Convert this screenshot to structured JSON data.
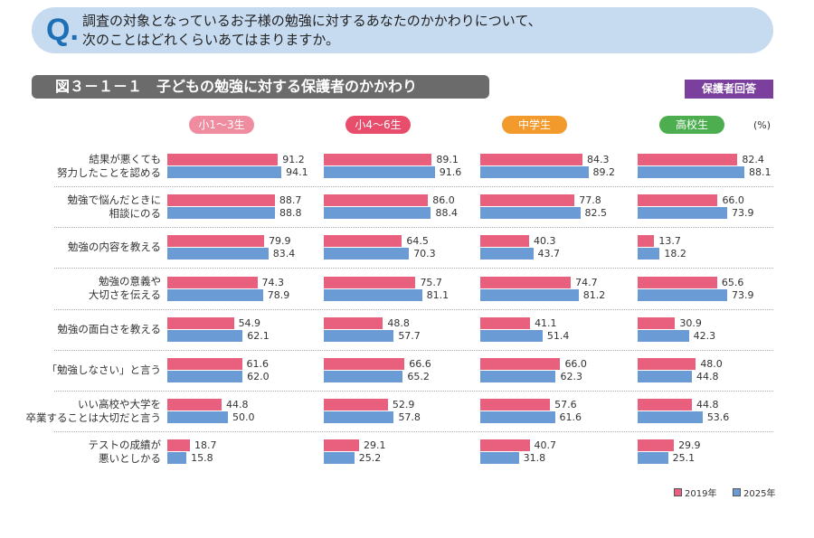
{
  "question": {
    "mark": "Q.",
    "line1": "調査の対象となっているお子様の勉強に対するあなたのかかわりについて、",
    "line2": "次のことはどれくらいあてはまりますか。"
  },
  "badge": "保護者回答",
  "chart_data": {
    "type": "bar",
    "orientation": "horizontal",
    "title": "図３－１－１　子どもの勉強に対する保護者のかかわり",
    "unit": "(%)",
    "xlim": [
      0,
      100
    ],
    "grid": false,
    "legend_placement": "bottom-right",
    "categories": [
      [
        "結果が悪くても",
        "努力したことを認める"
      ],
      [
        "勉強で悩んだときに",
        "相談にのる"
      ],
      [
        "勉強の内容を教える"
      ],
      [
        "勉強の意義や",
        "大切さを伝える"
      ],
      [
        "勉強の面白さを教える"
      ],
      [
        "「勉強しなさい」と言う"
      ],
      [
        "いい高校や大学を",
        "卒業することは大切だと言う"
      ],
      [
        "テストの成績が",
        "悪いとしかる"
      ]
    ],
    "legend": [
      {
        "name": "2019年",
        "color": "#e8607e"
      },
      {
        "name": "2025年",
        "color": "#6a9bd4"
      }
    ],
    "panels": [
      {
        "name": "小1～3生",
        "color": "#f08ca0",
        "series": [
          [
            91.2,
            88.7,
            79.9,
            74.3,
            54.9,
            61.6,
            44.8,
            18.7
          ],
          [
            94.1,
            88.8,
            83.4,
            78.9,
            62.1,
            62.0,
            50.0,
            15.8
          ]
        ]
      },
      {
        "name": "小4～6生",
        "color": "#e84e6c",
        "series": [
          [
            89.1,
            86.0,
            64.5,
            75.7,
            48.8,
            66.6,
            52.9,
            29.1
          ],
          [
            91.6,
            88.4,
            70.3,
            81.1,
            57.7,
            65.2,
            57.8,
            25.2
          ]
        ]
      },
      {
        "name": "中学生",
        "color": "#f39a2c",
        "series": [
          [
            84.3,
            77.8,
            40.3,
            74.7,
            41.1,
            66.0,
            57.6,
            40.7
          ],
          [
            89.2,
            82.5,
            43.7,
            81.2,
            51.4,
            62.3,
            61.6,
            31.8
          ]
        ]
      },
      {
        "name": "高校生",
        "color": "#4cae4f",
        "series": [
          [
            82.4,
            66.0,
            13.7,
            65.6,
            30.9,
            48.0,
            44.8,
            29.9
          ],
          [
            88.1,
            73.9,
            18.2,
            73.9,
            42.3,
            44.8,
            53.6,
            25.1
          ]
        ]
      }
    ]
  }
}
